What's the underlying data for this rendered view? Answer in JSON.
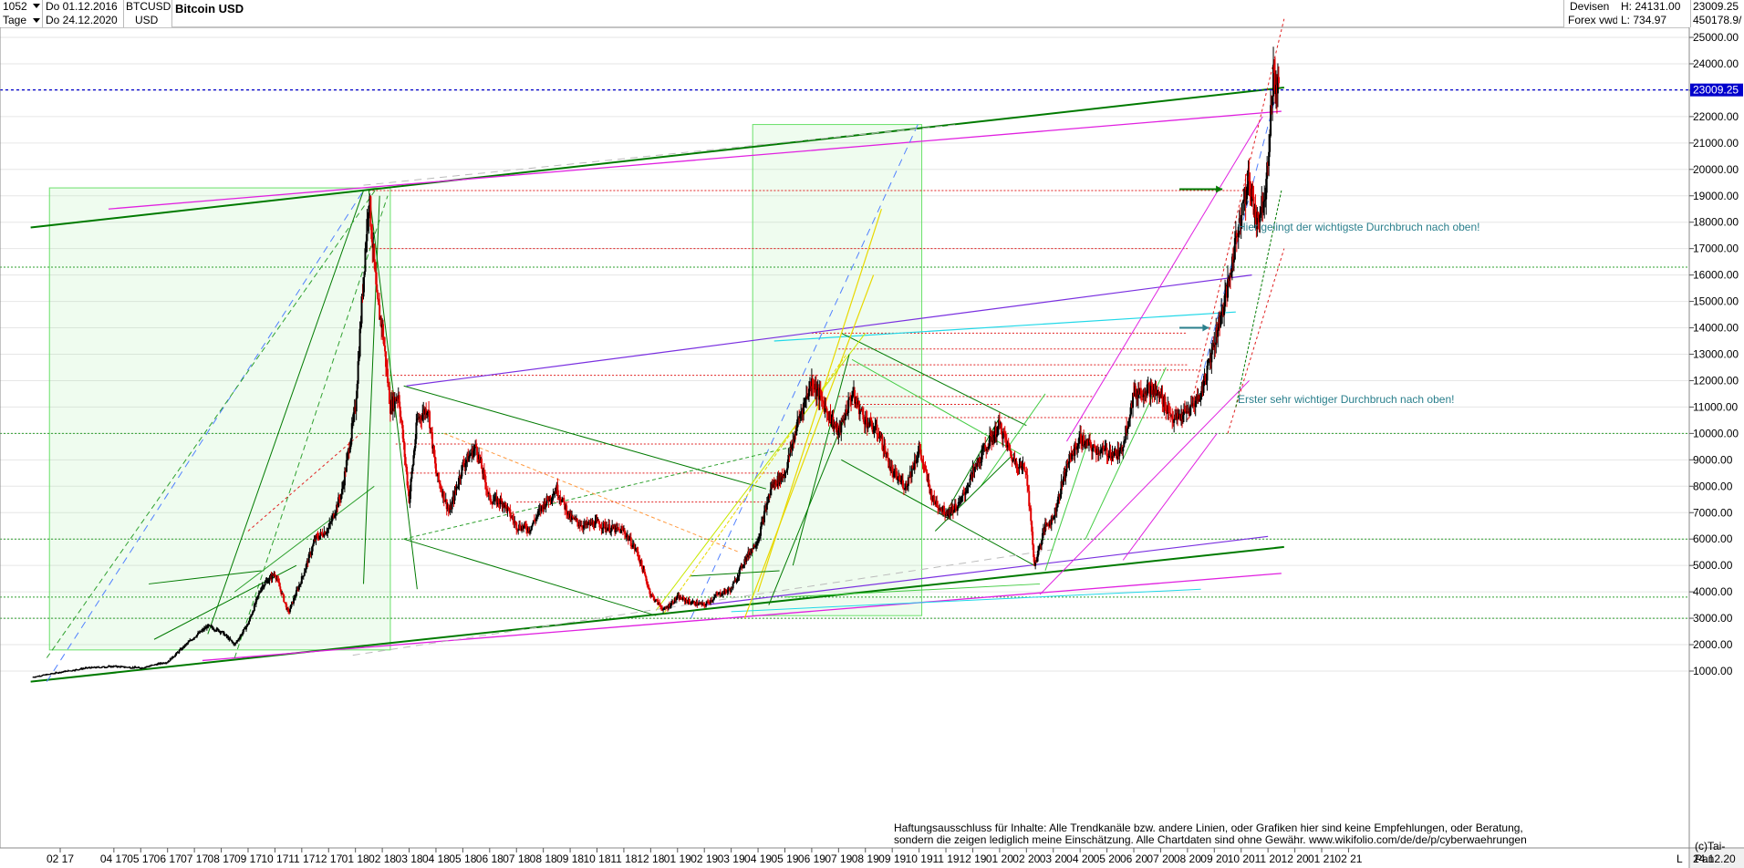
{
  "header": {
    "bars_count": "1052",
    "period": "Tage",
    "from_date": "Do 01.12.2016",
    "to_date": "Do 24.12.2020",
    "symbol": "BTCUSD",
    "currency": "USD",
    "title": "Bitcoin USD",
    "market": "Devisen",
    "source": "Forex vwd",
    "high": "H: 24131.00",
    "low": "L: 734.97",
    "last_price": "23009.25",
    "volume_like": "450178.9/"
  },
  "price_tag": "23009.25",
  "notes": {
    "breakout_top": "Hier gelingt der wichtigste Durchbruch nach oben!",
    "breakout_mid": "Erster sehr wichtiger Durchbruch nach oben!"
  },
  "disclaimer": [
    "Haftungsausschluss für Inhalte: Alle Trendkanäle bzw. andere Linien, oder Grafiken hier sind keine Empfehlungen, oder Beratung,",
    "sondern die zeigen lediglich meine  Einschätzung. Alle Chartdaten sind ohne Gewähr.  www.wikifolio.com/de/de/p/cyberwaehrungen"
  ],
  "copyright": "(c)Tai-Pan",
  "x_axis_end_label": "24.12.20",
  "x_axis_marker": "L",
  "colors": {
    "candle_down": "#e00000",
    "candle_up": "#000000",
    "price_line": "#0000cc",
    "channel_green": "#007a00",
    "magenta": "#e020e0",
    "purple": "#7a30e0",
    "cyan": "#20d8e8",
    "light_green_box": "#6ae06a",
    "note_text": "#2a7f8c"
  },
  "chart_data": {
    "type": "candlestick",
    "title": "Bitcoin USD",
    "ylim": [
      0,
      26000
    ],
    "y_ticks": [
      1000,
      2000,
      3000,
      4000,
      5000,
      6000,
      7000,
      8000,
      9000,
      10000,
      11000,
      12000,
      13000,
      14000,
      15000,
      16000,
      17000,
      18000,
      19000,
      20000,
      21000,
      22000,
      23000,
      24000,
      25000
    ],
    "y_tick_labels": [
      "1000.00",
      "2000.00",
      "3000.00",
      "4000.00",
      "5000.00",
      "6000.00",
      "7000.00",
      "8000.00",
      "9000.00",
      "10000.00",
      "11000.00",
      "12000.00",
      "13000.00",
      "14000.00",
      "15000.00",
      "16000.00",
      "17000.00",
      "18000.00",
      "19000.00",
      "20000.00",
      "21000.00",
      "22000.00",
      "23000.00",
      "24000.00",
      "25000.00"
    ],
    "x_tick_labels": [
      "02 17",
      "04 17",
      "05 17",
      "06 17",
      "07 17",
      "08 17",
      "09 17",
      "10 17",
      "11 17",
      "12 17",
      "01 18",
      "02 18",
      "03 18",
      "04 18",
      "05 18",
      "06 18",
      "07 18",
      "08 18",
      "09 18",
      "10 18",
      "11 18",
      "12 18",
      "01 19",
      "02 19",
      "03 19",
      "04 19",
      "05 19",
      "06 19",
      "07 19",
      "08 19",
      "09 19",
      "10 19",
      "11 19",
      "12 19",
      "01 20",
      "02 20",
      "03 20",
      "04 20",
      "05 20",
      "06 20",
      "07 20",
      "08 20",
      "09 20",
      "10 20",
      "11 20",
      "12 20",
      "01 21",
      "02 21"
    ],
    "x_tick_months": [
      2,
      4,
      5,
      6,
      7,
      8,
      9,
      10,
      11,
      12,
      13,
      14,
      15,
      16,
      17,
      18,
      19,
      20,
      21,
      22,
      23,
      24,
      25,
      26,
      27,
      28,
      29,
      30,
      31,
      32,
      33,
      34,
      35,
      36,
      37,
      38,
      39,
      40,
      41,
      42,
      43,
      44,
      45,
      46,
      47,
      48,
      49,
      50
    ],
    "price_path": [
      [
        0.0,
        780
      ],
      [
        1.0,
        960
      ],
      [
        2.0,
        1120
      ],
      [
        3.0,
        1180
      ],
      [
        4.0,
        1120
      ],
      [
        5.0,
        1350
      ],
      [
        6.0,
        2300
      ],
      [
        6.5,
        2700
      ],
      [
        7.0,
        2500
      ],
      [
        7.5,
        2000
      ],
      [
        8.0,
        2800
      ],
      [
        8.5,
        4200
      ],
      [
        9.0,
        4700
      ],
      [
        9.5,
        3200
      ],
      [
        10.0,
        4500
      ],
      [
        10.5,
        6000
      ],
      [
        11.0,
        6400
      ],
      [
        11.5,
        7800
      ],
      [
        12.0,
        11000
      ],
      [
        12.3,
        16000
      ],
      [
        12.5,
        19000
      ],
      [
        12.8,
        15000
      ],
      [
        13.0,
        14000
      ],
      [
        13.3,
        11000
      ],
      [
        13.6,
        11500
      ],
      [
        14.0,
        7500
      ],
      [
        14.3,
        10500
      ],
      [
        14.7,
        11000
      ],
      [
        15.0,
        8500
      ],
      [
        15.5,
        7000
      ],
      [
        16.0,
        8800
      ],
      [
        16.5,
        9500
      ],
      [
        17.0,
        7500
      ],
      [
        17.5,
        7400
      ],
      [
        18.0,
        6500
      ],
      [
        18.5,
        6400
      ],
      [
        19.0,
        7300
      ],
      [
        19.5,
        7900
      ],
      [
        20.0,
        6800
      ],
      [
        20.5,
        6500
      ],
      [
        21.0,
        6600
      ],
      [
        21.5,
        6400
      ],
      [
        22.0,
        6300
      ],
      [
        22.5,
        5500
      ],
      [
        23.0,
        3900
      ],
      [
        23.5,
        3300
      ],
      [
        24.0,
        3800
      ],
      [
        24.5,
        3600
      ],
      [
        25.0,
        3500
      ],
      [
        25.5,
        3900
      ],
      [
        26.0,
        4100
      ],
      [
        26.5,
        5200
      ],
      [
        27.0,
        6000
      ],
      [
        27.5,
        8000
      ],
      [
        28.0,
        8500
      ],
      [
        28.5,
        10500
      ],
      [
        29.0,
        12000
      ],
      [
        29.5,
        11000
      ],
      [
        30.0,
        10000
      ],
      [
        30.5,
        11500
      ],
      [
        31.0,
        10500
      ],
      [
        31.5,
        10000
      ],
      [
        32.0,
        8500
      ],
      [
        32.5,
        8000
      ],
      [
        33.0,
        9400
      ],
      [
        33.5,
        7500
      ],
      [
        34.0,
        7000
      ],
      [
        34.5,
        7300
      ],
      [
        35.0,
        8500
      ],
      [
        35.5,
        9500
      ],
      [
        36.0,
        10300
      ],
      [
        36.5,
        9000
      ],
      [
        37.0,
        8600
      ],
      [
        37.3,
        5000
      ],
      [
        37.7,
        6500
      ],
      [
        38.0,
        6800
      ],
      [
        38.5,
        8800
      ],
      [
        39.0,
        9800
      ],
      [
        39.5,
        9400
      ],
      [
        40.0,
        9300
      ],
      [
        40.5,
        9200
      ],
      [
        41.0,
        11500
      ],
      [
        41.5,
        11700
      ],
      [
        42.0,
        11400
      ],
      [
        42.5,
        10500
      ],
      [
        43.0,
        10800
      ],
      [
        43.5,
        11500
      ],
      [
        44.0,
        13500
      ],
      [
        44.5,
        15500
      ],
      [
        45.0,
        18500
      ],
      [
        45.3,
        19500
      ],
      [
        45.6,
        18000
      ],
      [
        45.9,
        19200
      ],
      [
        46.2,
        23500
      ],
      [
        46.4,
        23009
      ]
    ]
  }
}
